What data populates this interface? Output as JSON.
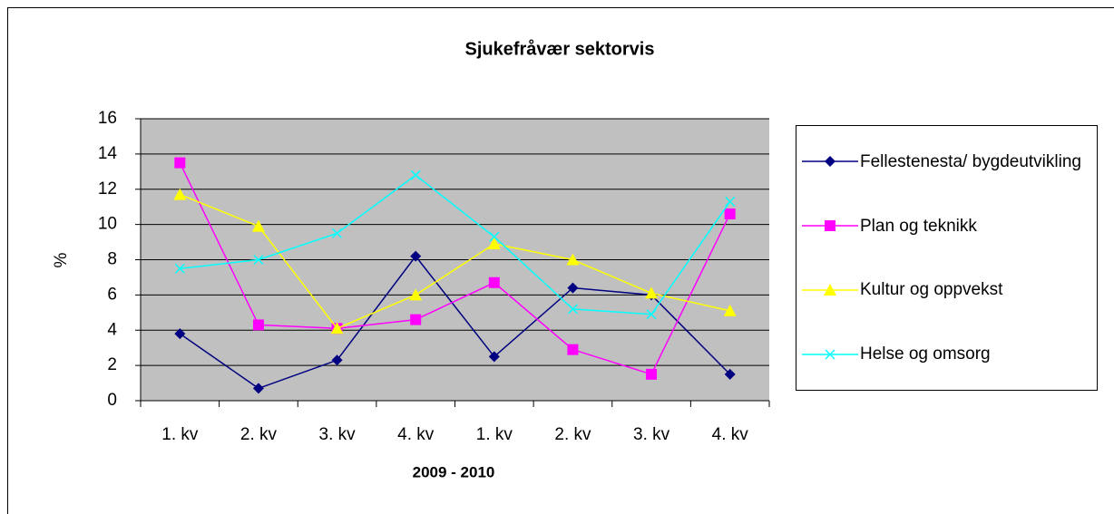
{
  "chart_data": {
    "type": "line",
    "title": "Sjukefråvær sektorvis",
    "x_label": "2009 - 2010",
    "y_label": "%",
    "categories": [
      "1. kv",
      "2. kv",
      "3. kv",
      "4. kv",
      "1. kv",
      "2. kv",
      "3. kv",
      "4. kv"
    ],
    "series": [
      {
        "name": "Fellestenesta/ bygdeutvikling",
        "color": "#000080",
        "marker": "diamond",
        "values": [
          3.8,
          0.7,
          2.3,
          8.2,
          2.5,
          6.4,
          6.0,
          1.5
        ]
      },
      {
        "name": "Plan og teknikk",
        "color": "#ff00ff",
        "marker": "square",
        "values": [
          13.5,
          4.3,
          4.1,
          4.6,
          6.7,
          2.9,
          1.5,
          10.6
        ]
      },
      {
        "name": "Kultur og oppvekst",
        "color": "#ffff00",
        "marker": "triangle",
        "values": [
          11.7,
          9.9,
          4.1,
          6.0,
          8.9,
          8.0,
          6.1,
          5.1
        ]
      },
      {
        "name": "Helse og omsorg",
        "color": "#00ffff",
        "marker": "x",
        "values": [
          7.5,
          8.0,
          9.5,
          12.8,
          9.3,
          5.2,
          4.9,
          11.3
        ]
      }
    ],
    "ylim": [
      0,
      16
    ],
    "yticks": [
      0,
      2,
      4,
      6,
      8,
      10,
      12,
      14,
      16
    ],
    "grid": true,
    "plot_background": "#c0c0c0",
    "legend": "right"
  }
}
